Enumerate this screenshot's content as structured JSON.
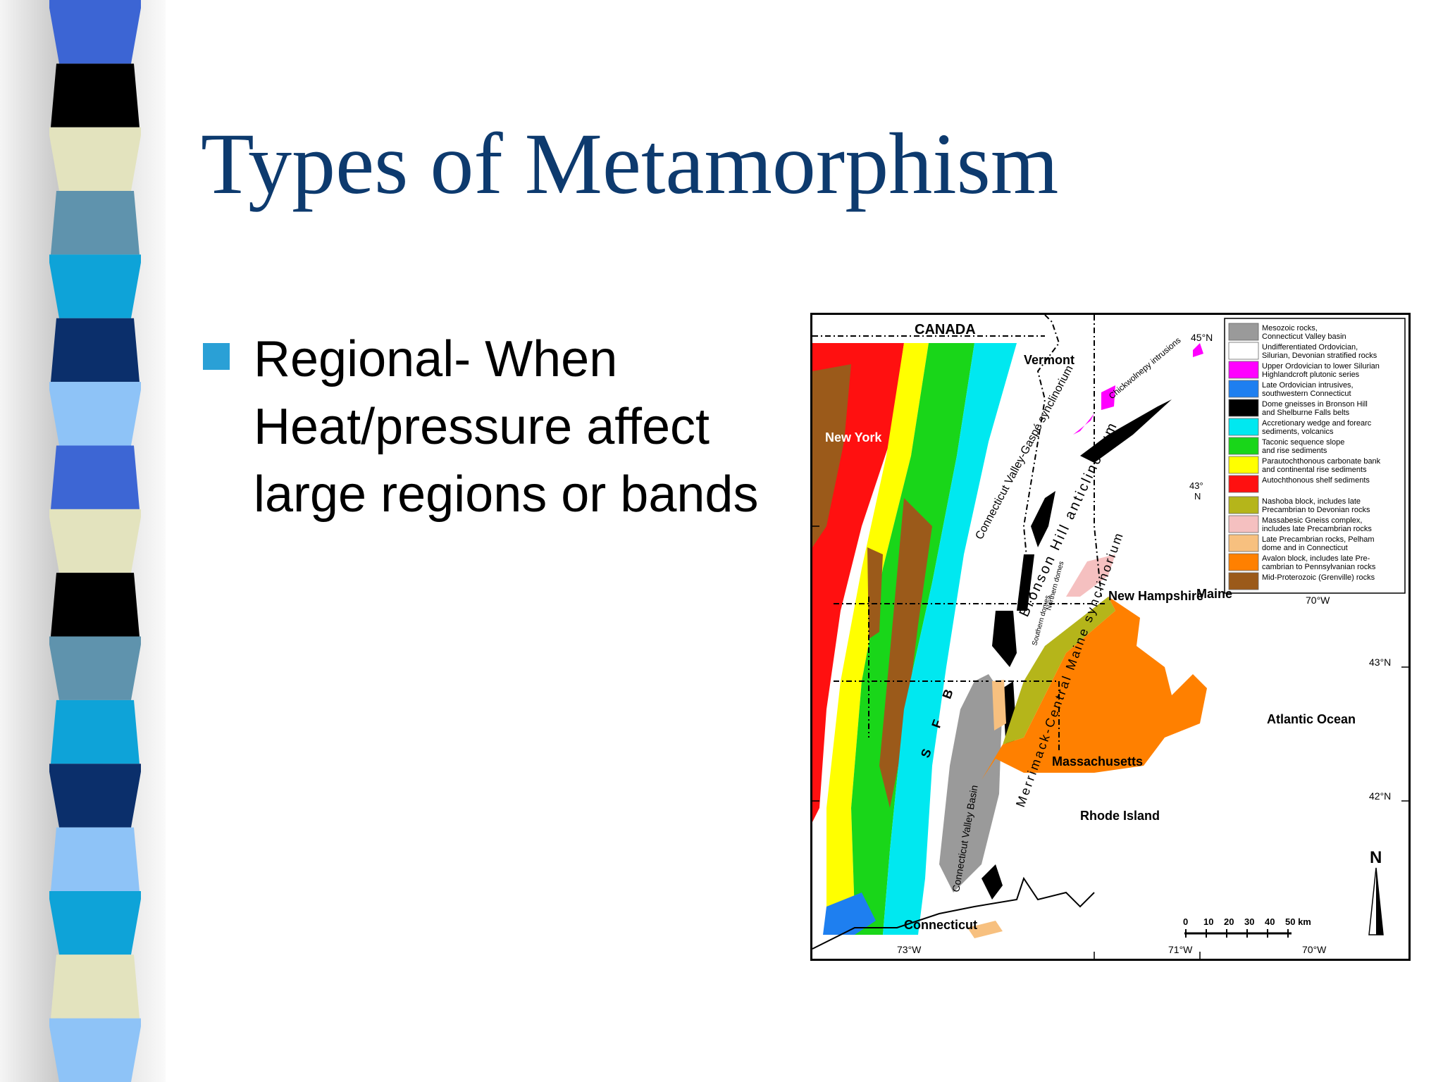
{
  "slide": {
    "title": "Types of Metamorphism",
    "bullet": "Regional- When Heat/pressure affect large regions or bands"
  },
  "map": {
    "region_labels": {
      "canada": "CANADA",
      "vermont": "Vermont",
      "new_york": "New York",
      "new_hampshire": "New Hampshire",
      "maine": "Maine",
      "massachusetts": "Massachusetts",
      "rhode_island": "Rhode Island",
      "connecticut": "Connecticut",
      "atlantic_ocean": "Atlantic Ocean"
    },
    "structure_labels": {
      "cv_gaspe": "Connecticut Valley-Gaspé synclinorium",
      "bronson_hill": "Bronson Hill anticlinorium",
      "merrimack": "Merrimack-Central Maine synclinorium",
      "chickwolnepy": "Chickwolnepy intrusions",
      "cv_basin": "Connecticut Valley Basin",
      "southern_domes": "Southern domes",
      "northern_domes": "Northern domes",
      "sfb": "S F B"
    },
    "coordinates": {
      "lat_45": "45°N",
      "lat_43_line1": "43°",
      "lat_43_line2": "N",
      "lat_43": "43°N",
      "lat_42": "42°N",
      "lon_73": "73°W",
      "lon_71": "71°W",
      "lon_70_bottom": "70°W",
      "lon_70_top": "70°W"
    },
    "scale": {
      "ticks": [
        "0",
        "10",
        "20",
        "30",
        "40",
        "50 km"
      ]
    },
    "north": "N",
    "legend": [
      {
        "color": "#9a9a9a",
        "lines": [
          "Mesozoic rocks,",
          "Connecticut Valley basin"
        ]
      },
      {
        "color": "#ffffff",
        "lines": [
          "Undifferentiated Ordovician,",
          "Silurian, Devonian stratified rocks"
        ]
      },
      {
        "color": "#ff00ff",
        "lines": [
          "Upper Ordovician to lower Silurian",
          "Highlandcroft plutonic series"
        ]
      },
      {
        "color": "#1e7ff0",
        "lines": [
          "Late Ordovician intrusives,",
          "southwestern Connecticut"
        ]
      },
      {
        "color": "#000000",
        "lines": [
          "Dome gneisses in Bronson Hill",
          "and Shelburne Falls belts"
        ]
      },
      {
        "color": "#00e8f0",
        "lines": [
          "Accretionary wedge and forearc",
          "sediments, volcanics"
        ]
      },
      {
        "color": "#19d619",
        "lines": [
          "Taconic sequence slope",
          "and rise sediments"
        ]
      },
      {
        "color": "#ffff00",
        "lines": [
          "Parautochthonous carbonate bank",
          "and continental rise sediments"
        ]
      },
      {
        "color": "#ff1010",
        "lines": [
          "Autochthonous shelf sediments"
        ]
      },
      {
        "color": "#b5b51a",
        "lines": [
          "Nashoba block, includes late",
          "Precambrian to Devonian rocks"
        ]
      },
      {
        "color": "#f5c0c0",
        "lines": [
          "Massabesic Gneiss complex,",
          "includes late Precambrian rocks"
        ]
      },
      {
        "color": "#f7c07f",
        "lines": [
          "Late Precambrian rocks, Pelham",
          "dome and in Connecticut"
        ]
      },
      {
        "color": "#ff8000",
        "lines": [
          "Avalon block, includes late Pre-",
          "cambrian to Pennsylvanian rocks"
        ]
      },
      {
        "color": "#9b5a1a",
        "lines": [
          "Mid-Proterozoic (Grenville) rocks"
        ]
      }
    ]
  },
  "decor": {
    "strip_colors": [
      "#3c65d4",
      "#000000",
      "#e3e3be",
      "#5f93ad",
      "#0ea3d8",
      "#0b2f6b",
      "#8ec3f7",
      "#3d66d4",
      "#e3e3be",
      "#000000",
      "#5f93ad",
      "#0ea3d8",
      "#0b2f6b",
      "#8ec3f7",
      "#0ea3d8",
      "#e3e3be",
      "#8ec3f7"
    ]
  }
}
